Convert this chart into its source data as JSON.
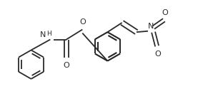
{
  "bg_color": "#ffffff",
  "line_color": "#2a2a2a",
  "lw": 1.3,
  "fs": 7.5,
  "fig_w": 2.84,
  "fig_h": 1.42,
  "dpi": 100,
  "xlim": [
    0,
    10
  ],
  "ylim": [
    0,
    5
  ]
}
